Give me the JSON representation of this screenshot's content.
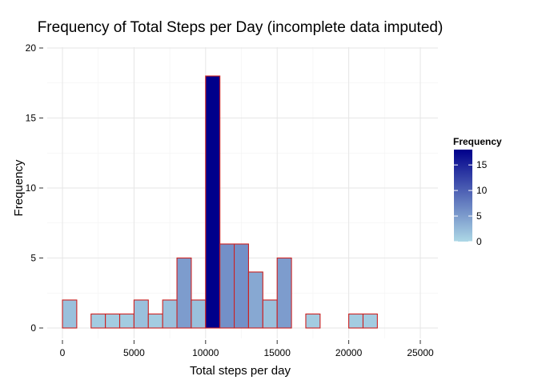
{
  "chart_data": {
    "type": "bar",
    "title": "Frequency of Total Steps per Day (incomplete data imputed)",
    "xlabel": "Total steps per day",
    "ylabel": "Frequency",
    "xlim": [
      0,
      25000
    ],
    "ylim": [
      0,
      20
    ],
    "x_ticks": [
      "0",
      "5000",
      "10000",
      "15000",
      "20000",
      "25000"
    ],
    "y_ticks": [
      "0",
      "5",
      "10",
      "15",
      "20"
    ],
    "bin_width": 1000,
    "bins": [
      {
        "start": 0,
        "end": 1000,
        "count": 2
      },
      {
        "start": 1000,
        "end": 2000,
        "count": 0
      },
      {
        "start": 2000,
        "end": 3000,
        "count": 1
      },
      {
        "start": 3000,
        "end": 4000,
        "count": 1
      },
      {
        "start": 4000,
        "end": 5000,
        "count": 1
      },
      {
        "start": 5000,
        "end": 6000,
        "count": 2
      },
      {
        "start": 6000,
        "end": 7000,
        "count": 1
      },
      {
        "start": 7000,
        "end": 8000,
        "count": 2
      },
      {
        "start": 8000,
        "end": 9000,
        "count": 5
      },
      {
        "start": 9000,
        "end": 10000,
        "count": 2
      },
      {
        "start": 10000,
        "end": 11000,
        "count": 18
      },
      {
        "start": 11000,
        "end": 12000,
        "count": 6
      },
      {
        "start": 12000,
        "end": 13000,
        "count": 6
      },
      {
        "start": 13000,
        "end": 14000,
        "count": 4
      },
      {
        "start": 14000,
        "end": 15000,
        "count": 2
      },
      {
        "start": 15000,
        "end": 16000,
        "count": 5
      },
      {
        "start": 16000,
        "end": 17000,
        "count": 0
      },
      {
        "start": 17000,
        "end": 18000,
        "count": 1
      },
      {
        "start": 18000,
        "end": 19000,
        "count": 0
      },
      {
        "start": 19000,
        "end": 20000,
        "count": 0
      },
      {
        "start": 20000,
        "end": 21000,
        "count": 1
      },
      {
        "start": 21000,
        "end": 22000,
        "count": 1
      },
      {
        "start": 22000,
        "end": 23000,
        "count": 0
      },
      {
        "start": 23000,
        "end": 24000,
        "count": 0
      },
      {
        "start": 24000,
        "end": 25000,
        "count": 0
      }
    ],
    "bar_outline_color": "#cc2020",
    "fill_gradient": {
      "low": "#add8e6",
      "high": "#00008b",
      "range": [
        0,
        18
      ]
    },
    "grid": true,
    "legend": {
      "title": "Frequency",
      "labels": [
        "0",
        "5",
        "10",
        "15"
      ],
      "values": [
        0,
        5,
        10,
        15
      ],
      "placement": "right"
    }
  }
}
